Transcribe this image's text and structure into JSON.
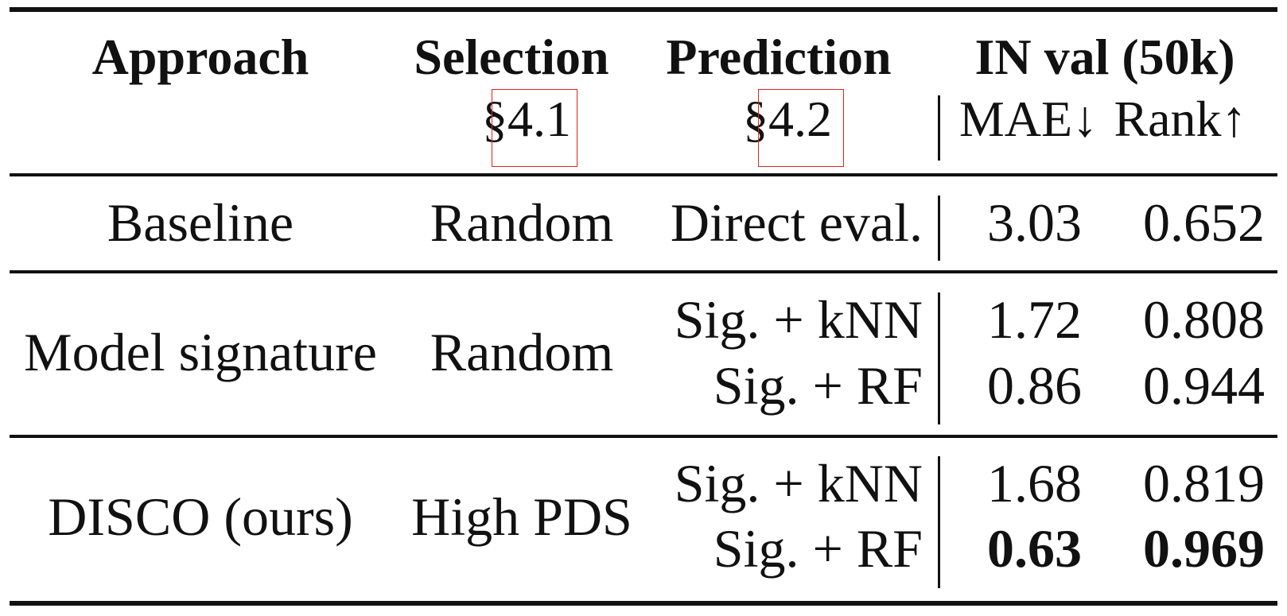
{
  "table": {
    "headers": {
      "approach": "Approach",
      "selection": "Selection",
      "prediction": "Prediction",
      "in_val": "IN val (50k)"
    },
    "subheaders": {
      "selection_ref": "§4.1",
      "prediction_ref": "§4.2",
      "mae": "MAE↓",
      "rank": "Rank↑"
    },
    "rows": [
      {
        "approach": "Baseline",
        "selection": "Random",
        "predictions": [
          {
            "method": "Direct eval.",
            "mae": "3.03",
            "rank": "0.652",
            "bold": false
          }
        ]
      },
      {
        "approach": "Model signature",
        "selection": "Random",
        "predictions": [
          {
            "method": "Sig. + kNN",
            "mae": "1.72",
            "rank": "0.808",
            "bold": false
          },
          {
            "method": "Sig. + RF",
            "mae": "0.86",
            "rank": "0.944",
            "bold": false
          }
        ]
      },
      {
        "approach": "DISCO (ours)",
        "selection": "High PDS",
        "predictions": [
          {
            "method": "Sig. + kNN",
            "mae": "1.68",
            "rank": "0.819",
            "bold": false
          },
          {
            "method": "Sig. + RF",
            "mae": "0.63",
            "rank": "0.969",
            "bold": true
          }
        ]
      }
    ],
    "ref_box_color": "#e0241c"
  }
}
